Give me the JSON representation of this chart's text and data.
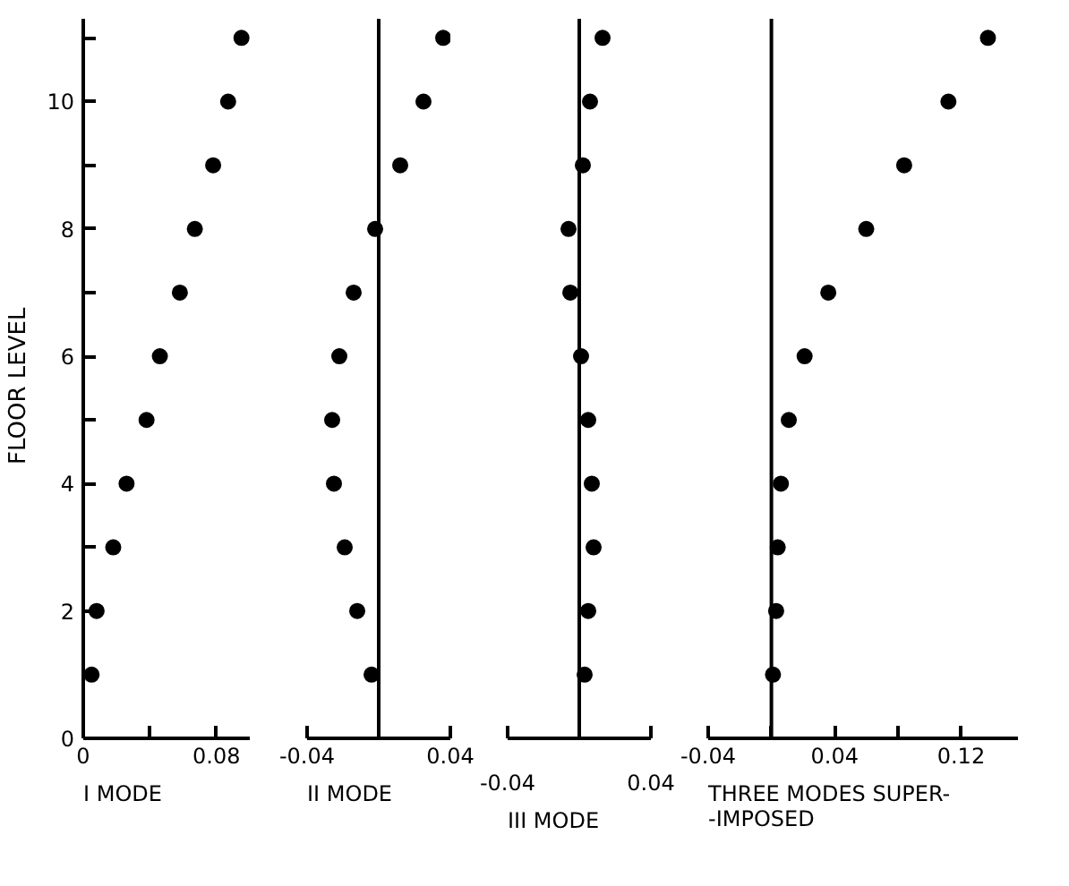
{
  "chart_data": [
    {
      "type": "scatter",
      "title": "I MODE",
      "ylabel": "FLOOR   LEVEL",
      "marker": "circle",
      "grid": false,
      "xlim": [
        0,
        0.1
      ],
      "xticks": [
        0,
        {
          "value": 0.04,
          "label": null
        },
        0.08
      ],
      "ylim": [
        0,
        11.3
      ],
      "yticks": [
        0,
        {
          "value": 1,
          "label": null
        },
        2,
        {
          "value": 3,
          "label": null
        },
        4,
        {
          "value": 5,
          "label": null
        },
        6,
        {
          "value": 7,
          "label": null
        },
        8,
        {
          "value": 9,
          "label": null
        },
        10,
        {
          "value": 11,
          "label": null
        }
      ],
      "series": [
        {
          "color": "#000000",
          "x": [
            0.005,
            0.008,
            0.018,
            0.026,
            0.038,
            0.046,
            0.058,
            0.067,
            0.078,
            0.087,
            0.095
          ],
          "values": [
            1,
            2,
            3,
            4,
            5,
            6,
            7,
            8,
            9,
            10,
            11
          ]
        }
      ]
    },
    {
      "type": "scatter",
      "title": "II MODE",
      "marker": "circle",
      "grid": false,
      "tick_labels": "x",
      "xlim": [
        -0.04,
        0.04
      ],
      "xticks": [
        -0.04,
        0.04
      ],
      "ylim": [
        0,
        11.3
      ],
      "ref_lines": [
        {
          "axis": "x",
          "value": 0,
          "color": "#000000"
        }
      ],
      "series": [
        {
          "color": "#000000",
          "x": [
            -0.004,
            -0.012,
            -0.019,
            -0.025,
            -0.026,
            -0.022,
            -0.014,
            -0.002,
            0.012,
            0.025,
            0.036
          ],
          "values": [
            1,
            2,
            3,
            4,
            5,
            6,
            7,
            8,
            9,
            10,
            11
          ]
        }
      ]
    },
    {
      "type": "scatter",
      "title": "III MODE",
      "marker": "circle",
      "grid": false,
      "tick_labels": "x",
      "xlim": [
        -0.04,
        0.04
      ],
      "xticks": [
        -0.04,
        0.04
      ],
      "ylim": [
        0,
        11.3
      ],
      "ref_lines": [
        {
          "axis": "x",
          "value": 0,
          "color": "#000000"
        }
      ],
      "series": [
        {
          "color": "#000000",
          "x": [
            0.003,
            0.005,
            0.008,
            0.007,
            0.005,
            0.001,
            -0.005,
            -0.006,
            0.002,
            0.006,
            0.013
          ],
          "values": [
            1,
            2,
            3,
            4,
            5,
            6,
            7,
            8,
            9,
            10,
            11
          ]
        }
      ]
    },
    {
      "type": "scatter",
      "title": "THREE MODES SUPER-\n-IMPOSED",
      "marker": "circle",
      "grid": false,
      "tick_labels": "x",
      "xlim": [
        -0.04,
        0.156
      ],
      "xticks": [
        -0.04,
        {
          "value": 0,
          "label": null
        },
        0.04,
        {
          "value": 0.08,
          "label": null
        },
        0.12
      ],
      "ylim": [
        0,
        11.3
      ],
      "ref_lines": [
        {
          "axis": "x",
          "value": 0,
          "color": "#000000"
        }
      ],
      "series": [
        {
          "color": "#000000",
          "x": [
            0.001,
            0.003,
            0.004,
            0.006,
            0.011,
            0.021,
            0.036,
            0.06,
            0.084,
            0.112,
            0.137
          ],
          "values": [
            1,
            2,
            3,
            4,
            5,
            6,
            7,
            8,
            9,
            10,
            11
          ]
        }
      ]
    }
  ]
}
